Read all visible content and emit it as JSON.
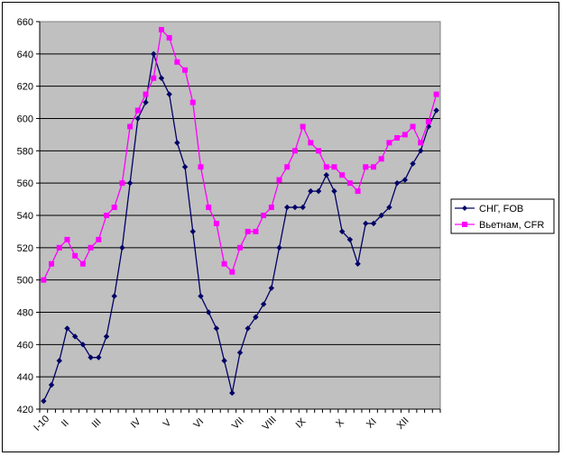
{
  "chart_data": {
    "type": "line",
    "title": "",
    "xlabel": "",
    "ylabel": "",
    "ylim": [
      420,
      660
    ],
    "yticks": [
      420,
      440,
      460,
      480,
      500,
      520,
      540,
      560,
      580,
      600,
      620,
      640,
      660
    ],
    "xticks": [
      {
        "label": "I-10",
        "index": 0
      },
      {
        "label": "II",
        "index": 3
      },
      {
        "label": "III",
        "index": 7
      },
      {
        "label": "IV",
        "index": 12
      },
      {
        "label": "V",
        "index": 16
      },
      {
        "label": "VI",
        "index": 20
      },
      {
        "label": "VII",
        "index": 25
      },
      {
        "label": "VIII",
        "index": 29
      },
      {
        "label": "IX",
        "index": 33
      },
      {
        "label": "X",
        "index": 38
      },
      {
        "label": "XI",
        "index": 42
      },
      {
        "label": "XII",
        "index": 46
      }
    ],
    "point_count": 51,
    "grid": true,
    "legend_position": "right",
    "plot_background": "#c0c0c0",
    "series": [
      {
        "name": "СНГ, FOB",
        "color": "#000066",
        "marker": "diamond",
        "values": [
          425,
          435,
          450,
          470,
          465,
          460,
          452,
          452,
          465,
          490,
          520,
          560,
          600,
          610,
          640,
          625,
          615,
          585,
          570,
          530,
          490,
          480,
          470,
          450,
          430,
          455,
          470,
          477,
          485,
          495,
          520,
          545,
          545,
          545,
          555,
          555,
          565,
          555,
          530,
          525,
          510,
          535,
          535,
          540,
          545,
          560,
          562,
          572,
          580,
          595,
          605
        ]
      },
      {
        "name": "Вьетнам, CFR",
        "color": "#ff00ff",
        "marker": "square",
        "values": [
          500,
          510,
          520,
          525,
          515,
          510,
          520,
          525,
          540,
          545,
          560,
          595,
          605,
          615,
          625,
          655,
          650,
          635,
          630,
          610,
          570,
          545,
          535,
          510,
          505,
          520,
          530,
          530,
          540,
          545,
          562,
          570,
          580,
          595,
          585,
          580,
          570,
          570,
          565,
          560,
          555,
          570,
          570,
          575,
          585,
          588,
          590,
          595,
          585,
          598,
          615
        ]
      }
    ]
  }
}
